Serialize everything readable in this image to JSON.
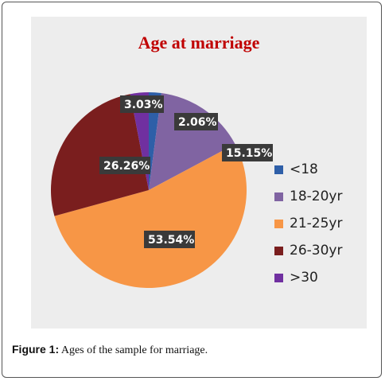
{
  "chart_data": {
    "type": "pie",
    "title": "Age at marriage",
    "categories": [
      "<18",
      "18-20yr",
      "21-25yr",
      "26-30yr",
      ">30"
    ],
    "values": [
      2.06,
      15.15,
      53.54,
      26.26,
      3.03
    ],
    "value_labels": [
      "2.06%",
      "15.15%",
      "53.54%",
      "26.26%",
      "3.03%"
    ],
    "colors": [
      "#2e5fa8",
      "#8064a2",
      "#f79646",
      "#7a1e1e",
      "#7030a0"
    ],
    "legend_position": "right"
  },
  "caption": {
    "label": "Figure 1:",
    "text": " Ages of the sample for marriage."
  }
}
